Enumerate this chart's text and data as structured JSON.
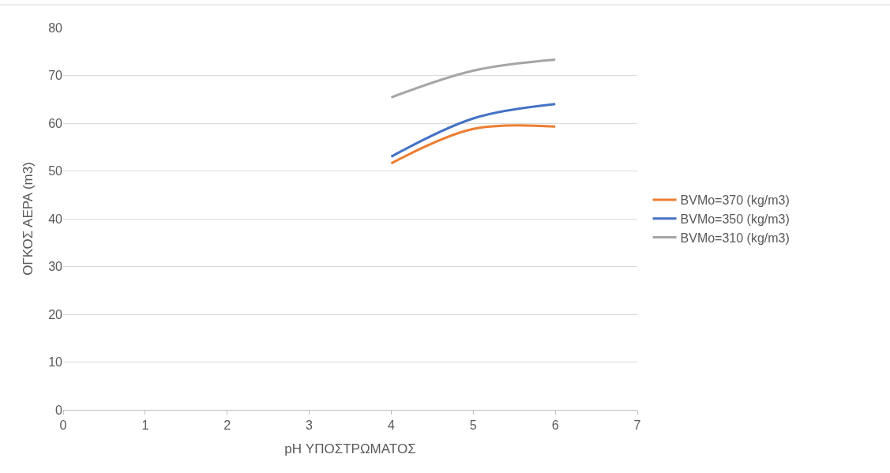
{
  "chart_data": {
    "type": "line",
    "xlabel": "pH ΥΠΟΣΤΡΩΜΑΤΟΣ",
    "ylabel": "ΟΓΚΟΣ ΑΕΡΑ (m3)",
    "x": [
      4,
      5,
      6
    ],
    "series": [
      {
        "name": "BVMo=370 (kg/m3)",
        "color": "#ed7d31",
        "values": [
          51.6,
          58.8,
          59.3
        ]
      },
      {
        "name": "BVMo=350 (kg/m3)",
        "color": "#4472c4",
        "values": [
          53.0,
          61.0,
          64.0
        ]
      },
      {
        "name": "BVMo=310 (kg/m3)",
        "color": "#a5a5a5",
        "values": [
          65.4,
          71.0,
          73.3
        ]
      }
    ],
    "xlim": [
      0,
      7
    ],
    "xticks": [
      0,
      1,
      2,
      3,
      4,
      5,
      6,
      7
    ],
    "ylim": [
      0,
      80
    ],
    "yticks": [
      0,
      10,
      20,
      30,
      40,
      50,
      60,
      70,
      80
    ],
    "grid": "y",
    "legend": "right",
    "marker": "none",
    "line_style": "solid"
  }
}
